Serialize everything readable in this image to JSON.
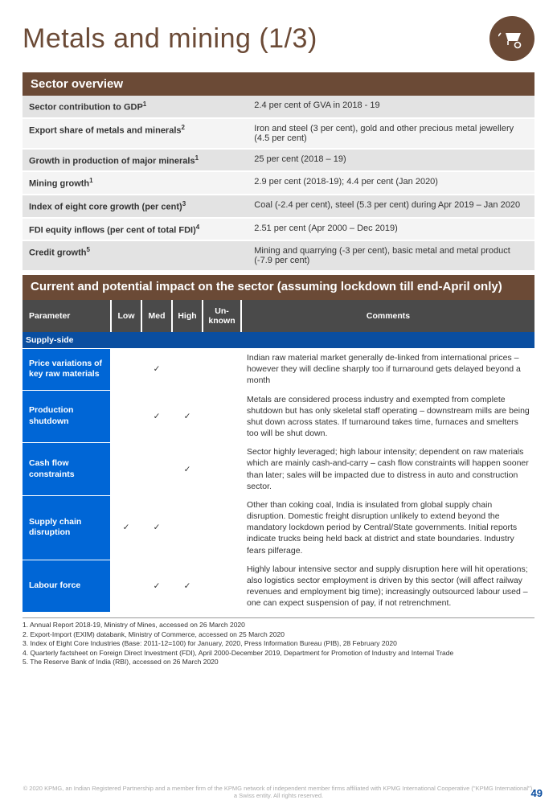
{
  "title": "Metals and mining (1/3)",
  "colors": {
    "brown": "#6b4a36",
    "grey_header": "#4a4a4a",
    "blue_sub": "#0a4ea0",
    "blue_param": "#0066d6",
    "row_odd": "#e3e3e3",
    "row_even": "#f4f4f4"
  },
  "section1_header": "Sector overview",
  "overview": [
    {
      "label": "Sector contribution to GDP",
      "sup": "1",
      "value": "2.4 per cent of GVA in 2018 - 19"
    },
    {
      "label": "Export share of metals and minerals",
      "sup": "2",
      "value": "Iron and steel (3 per cent), gold and other precious metal jewellery (4.5 per cent)"
    },
    {
      "label": "Growth in production of major minerals",
      "sup": "1",
      "value": "25 per cent (2018 – 19)"
    },
    {
      "label": "Mining growth",
      "sup": "1",
      "value": "2.9 per cent (2018-19); 4.4 per cent (Jan 2020)"
    },
    {
      "label": "Index of eight core growth (per cent)",
      "sup": "3",
      "value": "Coal (-2.4 per cent), steel (5.3 per cent) during Apr 2019 – Jan 2020"
    },
    {
      "label": "FDI equity inflows (per cent of total FDI)",
      "sup": "4",
      "value": "2.51 per cent (Apr 2000 – Dec 2019)"
    },
    {
      "label": "Credit growth",
      "sup": "5",
      "value": "Mining and quarrying (-3 per cent), basic metal and metal product (-7.9 per cent)"
    }
  ],
  "section2_header": "Current and potential impact on the sector (assuming lockdown till end-April only)",
  "impact_headers": {
    "parameter": "Parameter",
    "low": "Low",
    "med": "Med",
    "high": "High",
    "unknown": "Un-known",
    "comments": "Comments"
  },
  "supply_label": "Supply-side",
  "checkmark": "✓",
  "impact_rows": [
    {
      "param": "Price variations of key raw materials",
      "low": false,
      "med": true,
      "high": false,
      "unknown": false,
      "comment": "Indian raw material market generally de-linked from international prices – however they will decline sharply too if turnaround gets delayed beyond a month"
    },
    {
      "param": "Production shutdown",
      "low": false,
      "med": true,
      "high": true,
      "unknown": false,
      "comment": "Metals are considered process industry and exempted from complete shutdown but has only skeletal staff operating – downstream mills are being shut down across states. If turnaround takes time, furnaces and smelters too will be shut down."
    },
    {
      "param": "Cash flow constraints",
      "low": false,
      "med": false,
      "high": true,
      "unknown": false,
      "comment": "Sector highly leveraged; high labour intensity; dependent on raw materials which are mainly cash-and-carry – cash flow constraints will happen sooner than later; sales will be impacted due to distress in auto and construction sector."
    },
    {
      "param": "Supply chain disruption",
      "low": true,
      "med": true,
      "high": false,
      "unknown": false,
      "comment": "Other than coking coal, India is insulated from global supply chain disruption. Domestic freight disruption unlikely to extend beyond the mandatory lockdown period by Central/State governments. Initial reports indicate trucks being held back at district and state boundaries. Industry fears pilferage."
    },
    {
      "param": "Labour force",
      "low": false,
      "med": true,
      "high": true,
      "unknown": false,
      "comment": "Highly labour intensive sector and supply disruption here will hit operations; also logistics sector employment is driven by this sector (will affect railway revenues and employment big time); increasingly outsourced labour used – one can expect suspension of pay, if not retrenchment."
    }
  ],
  "footnotes": [
    "1. Annual Report 2018-19, Ministry of Mines, accessed on 26 March 2020",
    "2. Export-Import (EXIM) databank, Ministry of Commerce, accessed on 25 March 2020",
    "3. Index of Eight Core Industries (Base: 2011-12=100) for January, 2020, Press Information Bureau (PIB), 28 February 2020",
    "4. Quarterly factsheet on Foreign Direct Investment (FDI), April 2000-December 2019, Department for Promotion of Industry and Internal Trade",
    "5. The Reserve Bank of India (RBI), accessed on 26 March 2020"
  ],
  "copyright": "© 2020 KPMG, an Indian Registered Partnership and a member firm of the KPMG network of independent member firms affiliated with KPMG International Cooperative (\"KPMG International\"), a Swiss entity. All rights reserved.",
  "page_number": "49"
}
